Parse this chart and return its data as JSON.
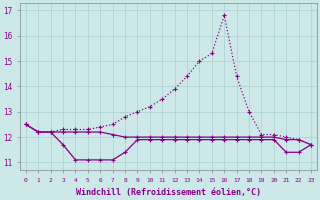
{
  "xlabel": "Windchill (Refroidissement éolien,°C)",
  "background_color": "#cce8e8",
  "line_color": "#880088",
  "x_values": [
    0,
    1,
    2,
    3,
    4,
    5,
    6,
    7,
    8,
    9,
    10,
    11,
    12,
    13,
    14,
    15,
    16,
    17,
    18,
    19,
    20,
    21,
    22,
    23
  ],
  "y_main": [
    12.5,
    12.2,
    12.2,
    12.3,
    12.3,
    12.3,
    12.4,
    12.5,
    12.8,
    13.0,
    13.2,
    13.5,
    13.9,
    14.4,
    15.0,
    15.3,
    16.8,
    14.4,
    13.0,
    12.1,
    12.1,
    12.0,
    11.9,
    11.7
  ],
  "y_mid": [
    12.5,
    12.2,
    12.2,
    12.2,
    12.2,
    12.2,
    12.2,
    12.1,
    12.0,
    12.0,
    12.0,
    12.0,
    12.0,
    12.0,
    12.0,
    12.0,
    12.0,
    12.0,
    12.0,
    12.0,
    12.0,
    11.9,
    11.9,
    11.7
  ],
  "y_low": [
    12.5,
    12.2,
    12.2,
    11.7,
    11.1,
    11.1,
    11.1,
    11.1,
    11.4,
    11.9,
    11.9,
    11.9,
    11.9,
    11.9,
    11.9,
    11.9,
    11.9,
    11.9,
    11.9,
    11.9,
    11.9,
    11.4,
    11.4,
    11.7
  ],
  "ylim": [
    10.7,
    17.3
  ],
  "yticks": [
    11,
    12,
    13,
    14,
    15,
    16,
    17
  ],
  "xticks": [
    0,
    1,
    2,
    3,
    4,
    5,
    6,
    7,
    8,
    9,
    10,
    11,
    12,
    13,
    14,
    15,
    16,
    17,
    18,
    19,
    20,
    21,
    22,
    23
  ]
}
